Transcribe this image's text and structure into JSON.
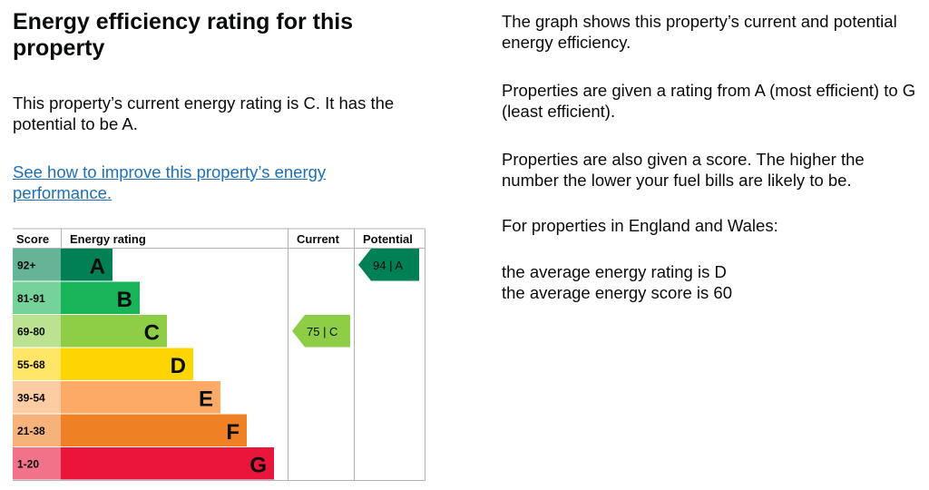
{
  "title": "Energy efficiency rating for this property",
  "current_text": "This property’s current energy rating is C. It has the potential to be A.",
  "improve_link": "See how to improve this property’s energy performance.",
  "info": {
    "p1": "The graph shows this property’s current and potential energy efficiency.",
    "p2": "Properties are given a rating from A (most efficient) to G (least efficient).",
    "p3": "Properties are also given a score. The higher the number the lower your fuel bills are likely to be.",
    "p4": "For properties in England and Wales:",
    "p5a": "the average energy rating is D",
    "p5b": "the average energy score is 60"
  },
  "chart_data": {
    "type": "table",
    "headers": {
      "score": "Score",
      "rating": "Energy rating",
      "current": "Current",
      "potential": "Potential"
    },
    "bands": [
      {
        "letter": "A",
        "range": "92+",
        "color": "#008054",
        "score_bg": "#66b398"
      },
      {
        "letter": "B",
        "range": "81-91",
        "color": "#19b459",
        "score_bg": "#75d29b"
      },
      {
        "letter": "C",
        "range": "69-80",
        "color": "#8dce46",
        "score_bg": "#bbe290"
      },
      {
        "letter": "D",
        "range": "55-68",
        "color": "#ffd500",
        "score_bg": "#ffe666"
      },
      {
        "letter": "E",
        "range": "39-54",
        "color": "#fcaa65",
        "score_bg": "#fdcca3"
      },
      {
        "letter": "F",
        "range": "21-38",
        "color": "#ef8023",
        "score_bg": "#f5b37b"
      },
      {
        "letter": "G",
        "range": "1-20",
        "color": "#e9153b",
        "score_bg": "#f27389"
      }
    ],
    "current": {
      "score": 75,
      "rating": "C",
      "label": "75 | C"
    },
    "potential": {
      "score": 94,
      "rating": "A",
      "label": "94 | A"
    }
  }
}
